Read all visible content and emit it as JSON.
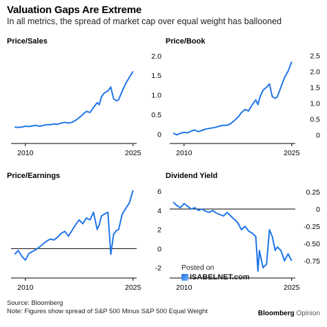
{
  "header": {
    "title": "Valuation Gaps Are Extreme",
    "subtitle": "In all metrics, the spread of market cap over equal weight has ballooned"
  },
  "colors": {
    "line": "#1f75e8",
    "axis": "#000000",
    "zero": "#000000"
  },
  "chart_data": [
    {
      "type": "line",
      "title": "Price/Sales",
      "x_ticks": [
        "2010",
        "2025"
      ],
      "y_ticks": [
        0,
        0.5,
        1.0,
        1.5,
        2.0
      ],
      "y_tick_labels": [
        "0",
        "0.5",
        "1.0",
        "1.5",
        "2.0"
      ],
      "xlim": [
        2008,
        2025.5
      ],
      "ylim": [
        -0.1,
        2.05
      ],
      "zero_line": false,
      "series": [
        {
          "x": [
            2008.5,
            2009,
            2009.5,
            2010,
            2010.5,
            2011,
            2011.5,
            2012,
            2012.5,
            2013,
            2013.5,
            2014,
            2014.5,
            2015,
            2015.5,
            2016,
            2016.5,
            2017,
            2017.5,
            2018,
            2018.5,
            2019,
            2019.5,
            2020,
            2020.3,
            2020.6,
            2021,
            2021.5,
            2021.9,
            2022.3,
            2022.7,
            2023,
            2023.5,
            2024,
            2024.5,
            2025
          ],
          "y": [
            0.18,
            0.17,
            0.18,
            0.2,
            0.19,
            0.21,
            0.22,
            0.2,
            0.22,
            0.24,
            0.24,
            0.26,
            0.25,
            0.28,
            0.3,
            0.28,
            0.3,
            0.35,
            0.42,
            0.5,
            0.58,
            0.55,
            0.68,
            0.8,
            0.75,
            0.95,
            1.05,
            1.1,
            1.2,
            0.9,
            0.85,
            0.88,
            1.1,
            1.3,
            1.45,
            1.6
          ]
        }
      ]
    },
    {
      "type": "line",
      "title": "Price/Book",
      "x_ticks": [
        "2010",
        "2025"
      ],
      "y_ticks": [
        0,
        0.5,
        1.0,
        1.5,
        2.0,
        2.5
      ],
      "y_tick_labels": [
        "0",
        "0.5",
        "1.0",
        "1.5",
        "2.0",
        "2.5"
      ],
      "xlim": [
        2008,
        2025.5
      ],
      "ylim": [
        -0.1,
        2.55
      ],
      "zero_line": false,
      "series": [
        {
          "x": [
            2008.5,
            2009,
            2009.5,
            2010,
            2010.5,
            2011,
            2011.5,
            2012,
            2012.5,
            2013,
            2013.5,
            2014,
            2014.5,
            2015,
            2015.5,
            2016,
            2016.5,
            2017,
            2017.5,
            2018,
            2018.5,
            2019,
            2019.5,
            2020,
            2020.3,
            2020.6,
            2021,
            2021.5,
            2021.9,
            2022.3,
            2022.7,
            2023,
            2023.5,
            2024,
            2024.5,
            2025
          ],
          "y": [
            0.05,
            0.0,
            0.05,
            0.08,
            0.06,
            0.12,
            0.15,
            0.1,
            0.14,
            0.18,
            0.2,
            0.22,
            0.24,
            0.28,
            0.3,
            0.3,
            0.35,
            0.45,
            0.55,
            0.7,
            0.8,
            0.75,
            0.95,
            1.1,
            0.95,
            1.2,
            1.4,
            1.5,
            1.6,
            1.2,
            1.15,
            1.2,
            1.5,
            1.8,
            2.0,
            2.3
          ]
        }
      ]
    },
    {
      "type": "line",
      "title": "Price/Earnings",
      "x_ticks": [
        "2010",
        "2025"
      ],
      "y_ticks": [
        -2,
        0,
        2,
        4,
        6
      ],
      "y_tick_labels": [
        "-2",
        "0",
        "2",
        "4",
        "6"
      ],
      "xlim": [
        2008,
        2025.5
      ],
      "ylim": [
        -2.5,
        6.3
      ],
      "zero_line": true,
      "series": [
        {
          "x": [
            2008.5,
            2009,
            2009.5,
            2010,
            2010.5,
            2011,
            2011.5,
            2012,
            2012.5,
            2013,
            2013.5,
            2014,
            2014.5,
            2015,
            2015.5,
            2016,
            2016.5,
            2017,
            2017.5,
            2018,
            2018.5,
            2019,
            2019.5,
            2020,
            2020.3,
            2020.6,
            2021,
            2021.5,
            2021.9,
            2022.3,
            2022.7,
            2023,
            2023.5,
            2024,
            2024.5,
            2025
          ],
          "y": [
            -0.6,
            -0.2,
            -0.8,
            -1.2,
            -0.5,
            -0.3,
            -0.1,
            0.2,
            0.5,
            0.8,
            1.0,
            0.9,
            1.2,
            1.6,
            1.8,
            1.3,
            1.9,
            2.5,
            3.0,
            2.6,
            3.2,
            3.0,
            3.8,
            2.0,
            2.5,
            3.4,
            3.6,
            3.8,
            -0.6,
            1.5,
            1.9,
            2.0,
            3.6,
            4.2,
            4.8,
            6.1
          ]
        }
      ]
    },
    {
      "type": "line",
      "title": "Dividend Yield",
      "x_ticks": [
        "2010",
        "2025"
      ],
      "y_ticks": [
        0.25,
        0,
        -0.25,
        -0.5,
        -0.75
      ],
      "y_tick_labels": [
        "0.25",
        "0",
        "-0.25",
        "-0.50",
        "-0.75"
      ],
      "xlim": [
        2008,
        2025.5
      ],
      "ylim": [
        -0.92,
        0.3
      ],
      "zero_line": true,
      "series": [
        {
          "x": [
            2008.5,
            2009,
            2009.5,
            2010,
            2010.5,
            2011,
            2011.5,
            2012,
            2012.5,
            2013,
            2013.5,
            2014,
            2014.5,
            2015,
            2015.5,
            2016,
            2016.5,
            2017,
            2017.5,
            2018,
            2018.5,
            2019,
            2019.5,
            2020,
            2020.3,
            2020.5,
            2020.8,
            2021,
            2021.5,
            2021.9,
            2022.3,
            2022.7,
            2023,
            2023.5,
            2024,
            2024.5,
            2025
          ],
          "y": [
            0.1,
            0.05,
            0.02,
            0.08,
            0.04,
            0.0,
            0.02,
            -0.02,
            0.0,
            -0.03,
            -0.05,
            -0.02,
            -0.06,
            -0.08,
            -0.1,
            -0.05,
            -0.1,
            -0.15,
            -0.2,
            -0.3,
            -0.25,
            -0.32,
            -0.35,
            -0.4,
            -0.9,
            -0.6,
            -0.75,
            -0.85,
            -0.8,
            -0.3,
            -0.4,
            -0.6,
            -0.55,
            -0.6,
            -0.75,
            -0.65,
            -0.75
          ]
        }
      ]
    }
  ],
  "watermark": {
    "line1": "Posted on",
    "line2": "ISABELNET.com"
  },
  "footer": {
    "source": "Source: Bloomberg",
    "note": "Note: Figures show spread of S&P 500 Minus S&P 500 Equal Weight"
  },
  "logo": {
    "brand": "Bloomberg",
    "sub": "Opinion"
  }
}
